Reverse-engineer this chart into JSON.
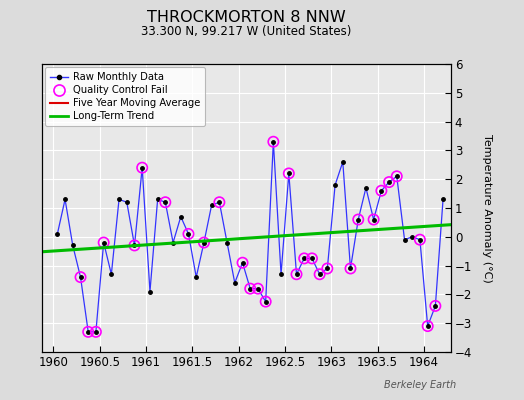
{
  "title": "THROCKMORTON 8 NNW",
  "subtitle": "33.300 N, 99.217 W (United States)",
  "credit": "Berkeley Earth",
  "ylabel": "Temperature Anomaly (°C)",
  "xlim": [
    1959.875,
    1964.29
  ],
  "ylim": [
    -4,
    6
  ],
  "xticks": [
    1960,
    1960.5,
    1961,
    1961.5,
    1962,
    1962.5,
    1963,
    1963.5,
    1964
  ],
  "yticks": [
    -4,
    -3,
    -2,
    -1,
    0,
    1,
    2,
    3,
    4,
    5,
    6
  ],
  "background_color": "#dcdcdc",
  "plot_bg_color": "#e8e8e8",
  "raw_x": [
    1960.042,
    1960.125,
    1960.208,
    1960.292,
    1960.375,
    1960.458,
    1960.542,
    1960.625,
    1960.708,
    1960.792,
    1960.875,
    1960.958,
    1961.042,
    1961.125,
    1961.208,
    1961.292,
    1961.375,
    1961.458,
    1961.542,
    1961.625,
    1961.708,
    1961.792,
    1961.875,
    1961.958,
    1962.042,
    1962.125,
    1962.208,
    1962.292,
    1962.375,
    1962.458,
    1962.542,
    1962.625,
    1962.708,
    1962.792,
    1962.875,
    1962.958,
    1963.042,
    1963.125,
    1963.208,
    1963.292,
    1963.375,
    1963.458,
    1963.542,
    1963.625,
    1963.708,
    1963.792,
    1963.875,
    1963.958,
    1964.042,
    1964.125,
    1964.208
  ],
  "raw_y": [
    0.1,
    1.3,
    -0.3,
    -1.4,
    -3.3,
    -3.3,
    -0.2,
    -1.3,
    1.3,
    1.2,
    -0.3,
    2.4,
    -1.9,
    1.3,
    1.2,
    -0.2,
    0.7,
    0.1,
    -1.4,
    -0.2,
    1.1,
    1.2,
    -0.2,
    -1.6,
    -0.9,
    -1.8,
    -1.8,
    -2.25,
    3.3,
    -1.3,
    2.2,
    -1.3,
    -0.75,
    -0.75,
    -1.3,
    -1.1,
    1.8,
    2.6,
    -1.1,
    0.6,
    1.7,
    0.6,
    1.6,
    1.9,
    2.1,
    -0.1,
    0.0,
    -0.1,
    -3.1,
    -2.4,
    1.3
  ],
  "qc_x": [
    1960.292,
    1960.375,
    1960.458,
    1960.542,
    1960.875,
    1960.958,
    1961.208,
    1961.458,
    1961.625,
    1961.792,
    1962.042,
    1962.125,
    1962.208,
    1962.292,
    1962.375,
    1962.542,
    1962.625,
    1962.708,
    1962.792,
    1962.875,
    1962.958,
    1963.208,
    1963.292,
    1963.458,
    1963.542,
    1963.625,
    1963.708,
    1963.958,
    1964.042,
    1964.125
  ],
  "qc_y": [
    -1.4,
    -3.3,
    -3.3,
    -0.2,
    -0.3,
    2.4,
    1.2,
    0.1,
    -0.2,
    1.2,
    -0.9,
    -1.8,
    -1.8,
    -2.25,
    3.3,
    2.2,
    -1.3,
    -0.75,
    -0.75,
    -1.3,
    -1.1,
    -1.1,
    0.6,
    0.6,
    1.6,
    1.9,
    2.1,
    -0.1,
    -3.1,
    -2.4
  ],
  "trend_x": [
    1959.875,
    1964.29
  ],
  "trend_y": [
    -0.52,
    0.42
  ],
  "line_color": "#3333ff",
  "dot_color": "#000000",
  "qc_color": "#ff00ff",
  "trend_color": "#00bb00",
  "moving_avg_color": "#dd0000"
}
